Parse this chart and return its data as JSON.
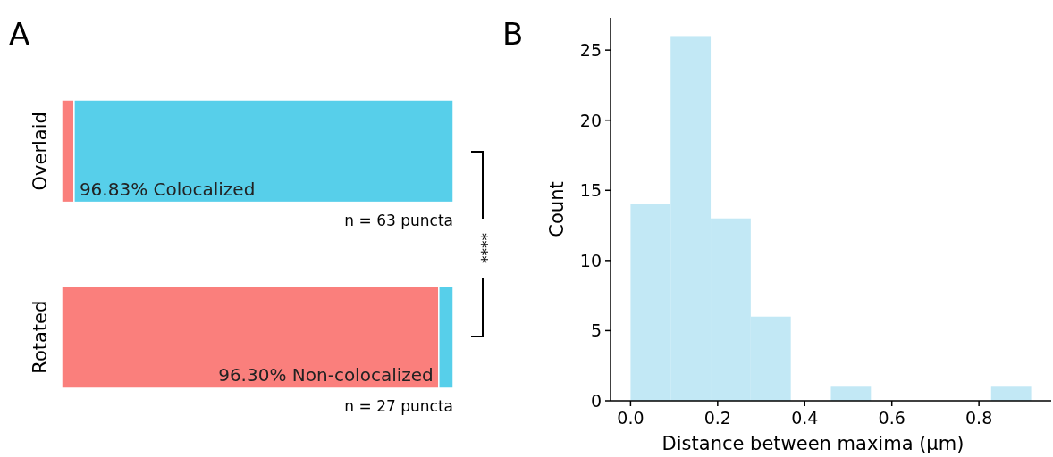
{
  "chart_data": [
    {
      "type": "bar",
      "title": "A",
      "orientation": "horizontal",
      "stacked": true,
      "categories": [
        "Overlaid",
        "Rotated"
      ],
      "series": [
        {
          "color": "#fa7f7c",
          "values": [
            3.17,
            96.3
          ],
          "value_labels": [
            null,
            "96.30% Non-colocalized"
          ]
        },
        {
          "color": "#57cfea",
          "values": [
            96.83,
            3.7
          ],
          "value_labels": [
            "96.83% Colocalized",
            null
          ]
        }
      ],
      "annotations": [
        "n = 63 puncta",
        "n = 27 puncta",
        "****"
      ]
    },
    {
      "type": "histogram",
      "title": "B",
      "xlabel": "Distance between maxima (µm)",
      "ylabel": "Count",
      "color": "#c2e8f5",
      "bins": [
        0,
        0.092,
        0.184,
        0.276,
        0.368,
        0.46,
        0.552,
        0.644,
        0.736,
        0.828,
        0.92
      ],
      "values": [
        14,
        26,
        13,
        6,
        0,
        1,
        0,
        0,
        0,
        1
      ],
      "xlim": [
        -0.046,
        0.966
      ],
      "ylim": [
        0,
        27.3
      ],
      "xticks": [
        {
          "value": 0,
          "label": "0.0"
        },
        0.2,
        0.4,
        0.6,
        0.8
      ],
      "yticks": [
        0,
        5,
        10,
        15,
        20,
        25
      ]
    }
  ]
}
